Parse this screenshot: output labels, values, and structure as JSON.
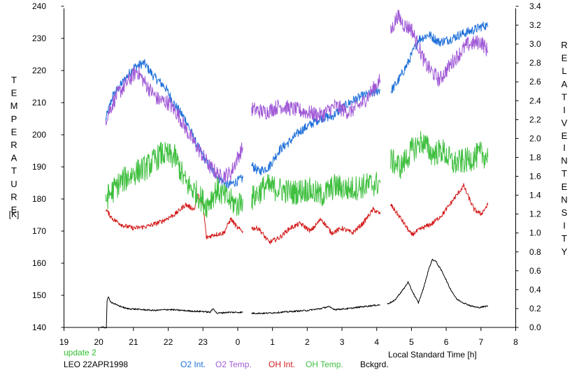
{
  "chart_data": {
    "type": "line",
    "xlabel": "Local Standard Time [h]",
    "x_ticks": [
      "19",
      "20",
      "21",
      "22",
      "23",
      "0",
      "1",
      "2",
      "3",
      "4",
      "5",
      "6",
      "7",
      "8"
    ],
    "xlim": [
      19,
      32
    ],
    "y_left": {
      "label": "TEMPERATURE",
      "unit": "[K]",
      "ylim": [
        140,
        240
      ],
      "ticks": [
        "140",
        "150",
        "160",
        "170",
        "180",
        "190",
        "200",
        "210",
        "220",
        "230",
        "240"
      ]
    },
    "y_right": {
      "label": "RELATIVE INTENSITY",
      "ylim": [
        0,
        3.4
      ],
      "ticks": [
        "0.0",
        "0.2",
        "0.4",
        "0.6",
        "0.8",
        "1.0",
        "1.2",
        "1.4",
        "1.6",
        "1.8",
        "2.0",
        "2.2",
        "2.4",
        "2.6",
        "2.8",
        "3.0",
        "3.2",
        "3.4"
      ]
    },
    "status": "update 2",
    "station": "LEO 22APR1998",
    "legend": [
      "O2 Int.",
      "O2 Temp.",
      "OH Int.",
      "OH Temp.",
      "Bckgrd."
    ],
    "colors": {
      "o2_int": "#1e6fd9",
      "o2_temp": "#a05ad6",
      "oh_int": "#d41a1a",
      "oh_temp": "#3fbf3f",
      "bckgrd": "#000000",
      "status": "#2fbf2f"
    },
    "series": [
      {
        "name": "O2 Int.",
        "axis": "right",
        "color": "#1e6fd9",
        "noise": 0.05,
        "segments": [
          [
            [
              20.2,
              2.2
            ],
            [
              20.4,
              2.45
            ],
            [
              20.7,
              2.6
            ],
            [
              21.0,
              2.75
            ],
            [
              21.3,
              2.8
            ],
            [
              21.6,
              2.65
            ],
            [
              21.9,
              2.55
            ],
            [
              22.2,
              2.35
            ],
            [
              22.5,
              2.2
            ],
            [
              22.8,
              1.95
            ],
            [
              23.1,
              1.75
            ],
            [
              23.4,
              1.6
            ],
            [
              23.7,
              1.5
            ],
            [
              24.0,
              1.55
            ],
            [
              24.15,
              1.58
            ]
          ],
          [
            [
              24.4,
              1.72
            ],
            [
              24.6,
              1.65
            ],
            [
              24.9,
              1.7
            ],
            [
              25.2,
              1.88
            ],
            [
              25.5,
              1.97
            ],
            [
              25.8,
              2.08
            ],
            [
              26.1,
              2.15
            ],
            [
              26.4,
              2.22
            ],
            [
              26.7,
              2.23
            ],
            [
              27.0,
              2.32
            ],
            [
              27.3,
              2.4
            ],
            [
              27.6,
              2.45
            ],
            [
              27.9,
              2.48
            ],
            [
              28.1,
              2.52
            ]
          ],
          [
            [
              28.4,
              2.5
            ],
            [
              28.6,
              2.6
            ],
            [
              28.9,
              2.8
            ],
            [
              29.2,
              3.05
            ],
            [
              29.5,
              3.1
            ],
            [
              29.8,
              3.02
            ],
            [
              30.1,
              3.05
            ],
            [
              30.4,
              3.1
            ],
            [
              30.8,
              3.15
            ],
            [
              31.1,
              3.2
            ],
            [
              31.2,
              3.18
            ]
          ]
        ]
      },
      {
        "name": "O2 Temp.",
        "axis": "left",
        "color": "#a05ad6",
        "noise": 2.4,
        "segments": [
          [
            [
              20.2,
              205
            ],
            [
              20.5,
              212
            ],
            [
              20.8,
              216
            ],
            [
              21.1,
              220
            ],
            [
              21.4,
              215
            ],
            [
              21.7,
              211
            ],
            [
              22.0,
              210
            ],
            [
              22.3,
              206
            ],
            [
              22.6,
              200
            ],
            [
              22.9,
              195
            ],
            [
              23.2,
              190
            ],
            [
              23.5,
              187
            ],
            [
              23.8,
              188
            ],
            [
              24.0,
              193
            ],
            [
              24.15,
              196
            ]
          ],
          [
            [
              24.4,
              208
            ],
            [
              24.8,
              207
            ],
            [
              25.2,
              209
            ],
            [
              25.6,
              208
            ],
            [
              26.0,
              207
            ],
            [
              26.4,
              206
            ],
            [
              26.8,
              209
            ],
            [
              27.2,
              207
            ],
            [
              27.6,
              210
            ],
            [
              28.1,
              217
            ]
          ],
          [
            [
              28.4,
              232
            ],
            [
              28.6,
              237
            ],
            [
              28.8,
              234
            ],
            [
              29.0,
              233
            ],
            [
              29.4,
              222
            ],
            [
              29.8,
              217
            ],
            [
              30.2,
              223
            ],
            [
              30.6,
              228
            ],
            [
              31.0,
              229
            ],
            [
              31.2,
              226
            ]
          ]
        ]
      },
      {
        "name": "OH Int.",
        "axis": "right",
        "color": "#d41a1a",
        "noise": 0.025,
        "segments": [
          [
            [
              20.2,
              1.25
            ],
            [
              20.4,
              1.15
            ],
            [
              20.7,
              1.08
            ],
            [
              21.0,
              1.05
            ],
            [
              21.4,
              1.07
            ],
            [
              21.8,
              1.12
            ],
            [
              22.2,
              1.2
            ],
            [
              22.5,
              1.3
            ],
            [
              22.75,
              1.25
            ],
            [
              22.85,
              1.4
            ],
            [
              23.0,
              1.3
            ],
            [
              23.1,
              0.95
            ],
            [
              23.3,
              0.98
            ],
            [
              23.6,
              1.0
            ],
            [
              23.8,
              1.15
            ],
            [
              24.0,
              1.05
            ],
            [
              24.15,
              1.02
            ]
          ],
          [
            [
              24.4,
              1.05
            ],
            [
              24.6,
              1.05
            ],
            [
              24.9,
              0.9
            ],
            [
              25.2,
              0.95
            ],
            [
              25.5,
              1.05
            ],
            [
              25.8,
              1.1
            ],
            [
              26.1,
              1.02
            ],
            [
              26.4,
              1.15
            ],
            [
              26.7,
              1.0
            ],
            [
              27.0,
              1.05
            ],
            [
              27.3,
              1.0
            ],
            [
              27.6,
              1.1
            ],
            [
              27.9,
              1.25
            ],
            [
              28.1,
              1.2
            ]
          ],
          [
            [
              28.4,
              1.3
            ],
            [
              28.7,
              1.15
            ],
            [
              29.0,
              0.98
            ],
            [
              29.3,
              1.05
            ],
            [
              29.6,
              1.1
            ],
            [
              29.9,
              1.2
            ],
            [
              30.2,
              1.35
            ],
            [
              30.5,
              1.5
            ],
            [
              30.8,
              1.25
            ],
            [
              31.0,
              1.2
            ],
            [
              31.2,
              1.3
            ]
          ]
        ]
      },
      {
        "name": "OH Temp.",
        "axis": "left",
        "color": "#3fbf3f",
        "noise": 4.0,
        "segments": [
          [
            [
              20.2,
              180
            ],
            [
              20.6,
              185
            ],
            [
              21.0,
              188
            ],
            [
              21.4,
              190
            ],
            [
              21.8,
              194
            ],
            [
              22.2,
              193
            ],
            [
              22.5,
              185
            ],
            [
              22.8,
              182
            ],
            [
              23.1,
              178
            ],
            [
              23.4,
              183
            ],
            [
              23.7,
              180
            ],
            [
              24.0,
              178
            ],
            [
              24.15,
              180
            ]
          ],
          [
            [
              24.4,
              180
            ],
            [
              24.8,
              184
            ],
            [
              25.2,
              183
            ],
            [
              25.6,
              182
            ],
            [
              26.0,
              183
            ],
            [
              26.4,
              181
            ],
            [
              26.8,
              184
            ],
            [
              27.2,
              183
            ],
            [
              27.6,
              184
            ],
            [
              28.1,
              185
            ]
          ],
          [
            [
              28.4,
              192
            ],
            [
              28.7,
              190
            ],
            [
              29.0,
              195
            ],
            [
              29.3,
              198
            ],
            [
              29.6,
              194
            ],
            [
              29.9,
              195
            ],
            [
              30.2,
              191
            ],
            [
              30.6,
              192
            ],
            [
              31.0,
              194
            ],
            [
              31.2,
              193
            ]
          ]
        ]
      },
      {
        "name": "Bckgrd.",
        "axis": "right",
        "color": "#000000",
        "noise": 0.008,
        "segments": [
          [
            [
              20.05,
              0.0
            ],
            [
              20.22,
              0.0
            ],
            [
              20.24,
              0.28
            ],
            [
              20.28,
              0.32
            ],
            [
              20.35,
              0.27
            ],
            [
              20.5,
              0.24
            ],
            [
              20.8,
              0.2
            ],
            [
              21.2,
              0.19
            ],
            [
              21.6,
              0.18
            ],
            [
              22.0,
              0.19
            ],
            [
              22.4,
              0.18
            ],
            [
              22.8,
              0.17
            ],
            [
              23.0,
              0.17
            ],
            [
              23.2,
              0.16
            ],
            [
              23.3,
              0.2
            ],
            [
              23.4,
              0.15
            ],
            [
              23.7,
              0.16
            ],
            [
              24.15,
              0.16
            ]
          ],
          [
            [
              24.4,
              0.15
            ],
            [
              24.8,
              0.15
            ],
            [
              25.2,
              0.16
            ],
            [
              25.6,
              0.17
            ],
            [
              26.0,
              0.18
            ],
            [
              26.4,
              0.2
            ],
            [
              26.6,
              0.22
            ],
            [
              26.8,
              0.19
            ],
            [
              27.2,
              0.2
            ],
            [
              27.6,
              0.22
            ],
            [
              28.1,
              0.24
            ]
          ],
          [
            [
              28.3,
              0.25
            ],
            [
              28.5,
              0.28
            ],
            [
              28.8,
              0.42
            ],
            [
              28.9,
              0.48
            ],
            [
              29.0,
              0.4
            ],
            [
              29.2,
              0.26
            ],
            [
              29.35,
              0.42
            ],
            [
              29.5,
              0.62
            ],
            [
              29.6,
              0.72
            ],
            [
              29.7,
              0.7
            ],
            [
              29.9,
              0.58
            ],
            [
              30.1,
              0.42
            ],
            [
              30.3,
              0.3
            ],
            [
              30.5,
              0.26
            ],
            [
              30.7,
              0.23
            ],
            [
              30.9,
              0.21
            ],
            [
              31.1,
              0.22
            ],
            [
              31.2,
              0.23
            ]
          ]
        ]
      }
    ]
  }
}
